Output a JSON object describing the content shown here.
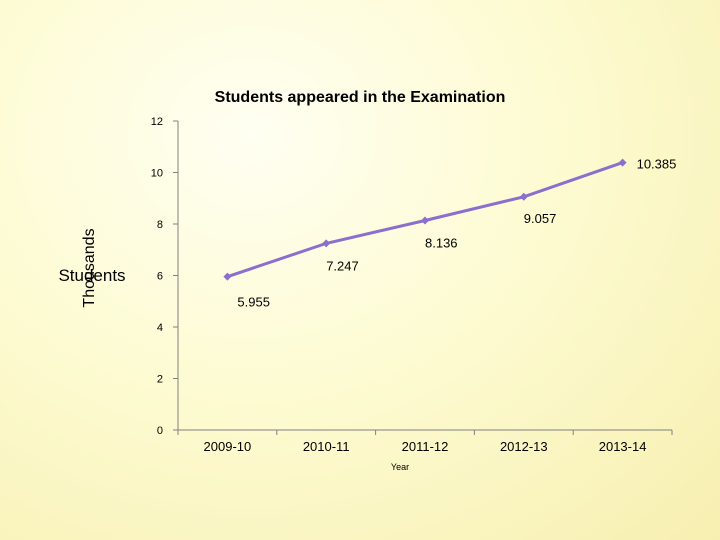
{
  "chart_data": {
    "type": "line",
    "title": "Students appeared  in the Examination",
    "xlabel": "Year",
    "ylabel": "Students",
    "yunit_label": "Thousands",
    "categories": [
      "2009-10",
      "2010-11",
      "2011-12",
      "2012-13",
      "2013-14"
    ],
    "series": [
      {
        "values": [
          5.955,
          7.247,
          8.136,
          9.057,
          10.385
        ],
        "color": "#8b6fcf"
      }
    ],
    "data_labels": [
      "5.955",
      "7.247",
      "8.136",
      "9.057",
      "10.385"
    ],
    "ylim": [
      0,
      12
    ],
    "yticks": [
      0,
      2,
      4,
      6,
      8,
      10,
      12
    ],
    "grid": false,
    "legend": "none"
  }
}
